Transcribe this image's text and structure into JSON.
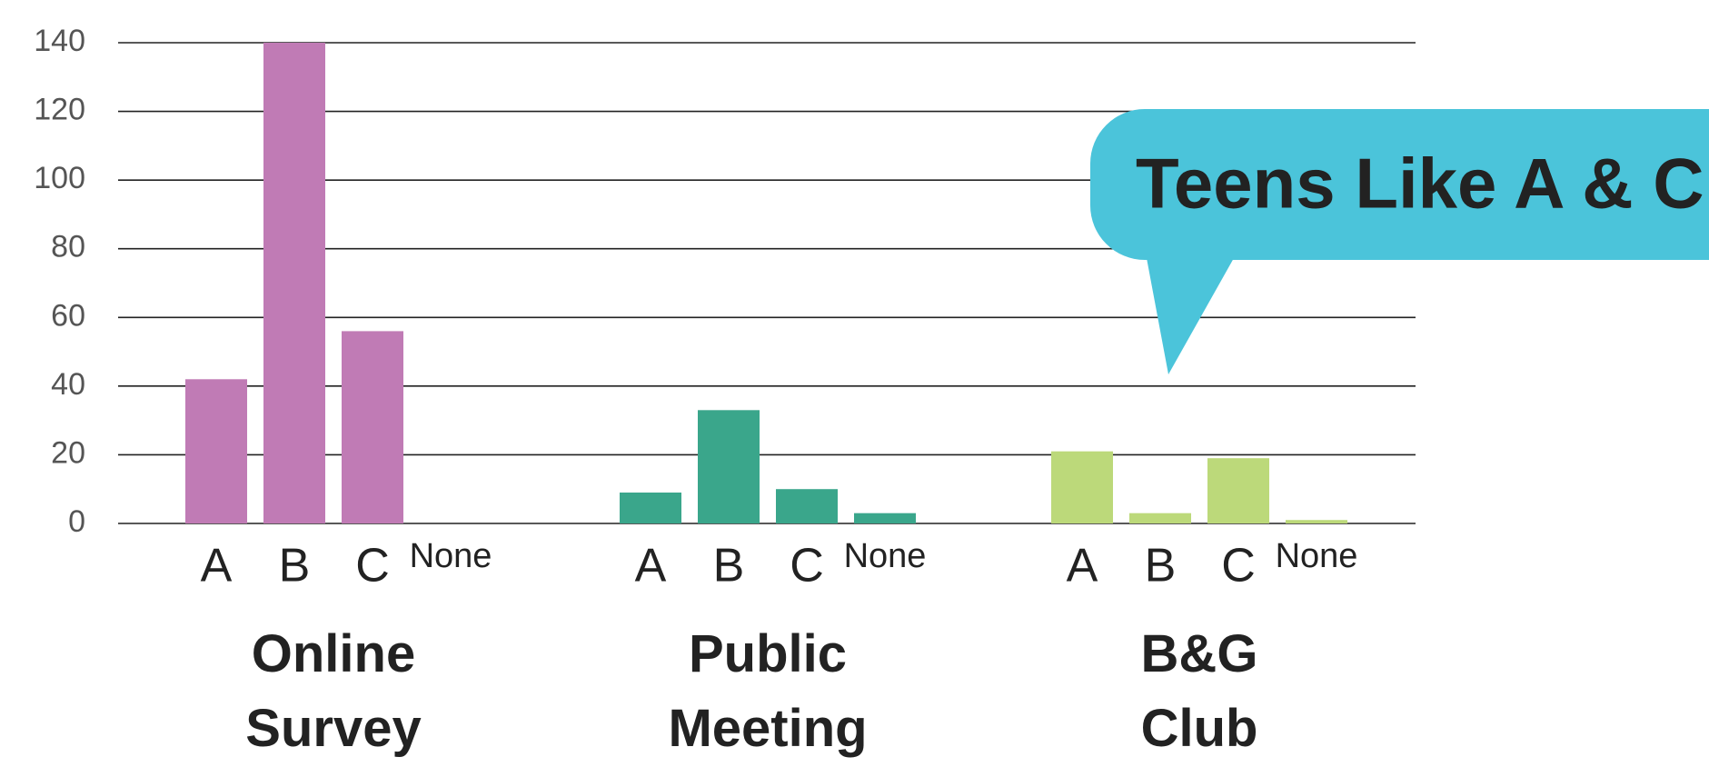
{
  "chart_data": {
    "type": "bar",
    "categories": [
      "A",
      "B",
      "C",
      "None"
    ],
    "series": [
      {
        "name": "Online Survey",
        "color": "#c07bb5",
        "values": [
          42,
          140,
          56,
          0
        ]
      },
      {
        "name": "Public Meeting",
        "color": "#3aa68b",
        "values": [
          9,
          33,
          10,
          3
        ]
      },
      {
        "name": "B&G Club",
        "color": "#bcd97a",
        "values": [
          21,
          3,
          19,
          1
        ]
      }
    ],
    "ylim": [
      0,
      140
    ],
    "yticks": [
      0,
      20,
      40,
      60,
      80,
      100,
      120,
      140
    ],
    "grid": true,
    "annotation": "Teens Like A & C"
  }
}
